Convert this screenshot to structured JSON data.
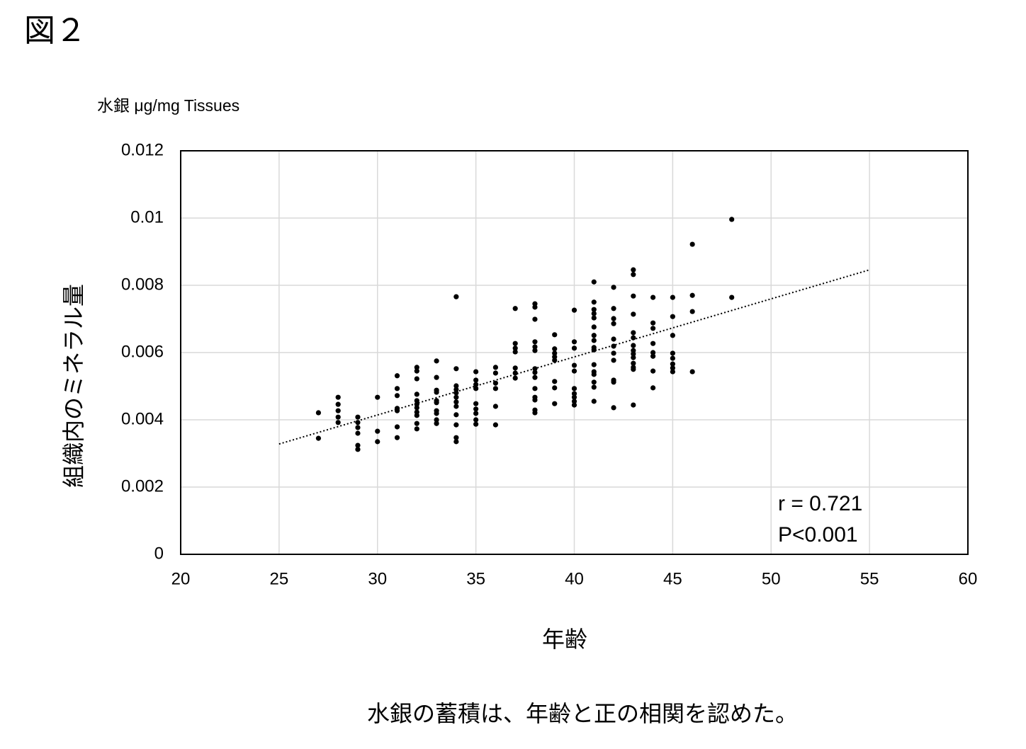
{
  "chart_data": {
    "type": "scatter",
    "figure_label": "図２",
    "y_unit_label": "水銀 μg/mg Tissues",
    "ylabel": "組織内のミネラル量",
    "xlabel": "年齢",
    "caption": "水銀の蓄積は、年齢と正の相関を認めた。",
    "annotations": [
      "r = 0.721",
      "P<0.001"
    ],
    "color": "#000000",
    "grid": true,
    "xlim": [
      20,
      60
    ],
    "xticks": [
      20,
      25,
      30,
      35,
      40,
      45,
      50,
      55,
      60
    ],
    "ylim": [
      0,
      0.012
    ],
    "yticks": [
      0,
      0.002,
      0.004,
      0.006,
      0.008,
      0.01,
      0.012
    ],
    "x": [
      27,
      27,
      28,
      28,
      28,
      28,
      28,
      29,
      29,
      29,
      29,
      29,
      29,
      30,
      30,
      30,
      31,
      31,
      31,
      31,
      31,
      31,
      31,
      32,
      32,
      32,
      32,
      32,
      32,
      32,
      32,
      32,
      32,
      32,
      33,
      33,
      33,
      33,
      33,
      33,
      33,
      33,
      33,
      33,
      34,
      34,
      34,
      34,
      34,
      34,
      34,
      34,
      34,
      34,
      34,
      34,
      35,
      35,
      35,
      35,
      35,
      35,
      35,
      35,
      35,
      36,
      36,
      36,
      36,
      36,
      36,
      37,
      37,
      37,
      37,
      37,
      37,
      37,
      38,
      38,
      38,
      38,
      38,
      38,
      38,
      38,
      38,
      38,
      38,
      38,
      38,
      38,
      39,
      39,
      39,
      39,
      39,
      39,
      39,
      39,
      40,
      40,
      40,
      40,
      40,
      40,
      40,
      40,
      40,
      40,
      41,
      41,
      41,
      41,
      41,
      41,
      41,
      41,
      41,
      41,
      41,
      41,
      41,
      41,
      41,
      41,
      42,
      42,
      42,
      42,
      42,
      42,
      42,
      42,
      42,
      42,
      42,
      43,
      43,
      43,
      43,
      43,
      43,
      43,
      43,
      43,
      43,
      43,
      43,
      43,
      43,
      44,
      44,
      44,
      44,
      44,
      44,
      44,
      44,
      45,
      45,
      45,
      45,
      45,
      45,
      45,
      45,
      46,
      46,
      46,
      46,
      48,
      48
    ],
    "values": [
      0.00421,
      0.00345,
      0.00467,
      0.00446,
      0.00427,
      0.00408,
      0.00392,
      0.00408,
      0.00392,
      0.00377,
      0.0036,
      0.00324,
      0.00312,
      0.00467,
      0.00366,
      0.00335,
      0.00531,
      0.00493,
      0.00472,
      0.00434,
      0.00427,
      0.00379,
      0.00347,
      0.00556,
      0.00545,
      0.00522,
      0.00476,
      0.00457,
      0.00446,
      0.00436,
      0.00423,
      0.00413,
      0.00389,
      0.00373,
      0.00575,
      0.00526,
      0.00488,
      0.00482,
      0.00457,
      0.00451,
      0.00427,
      0.00419,
      0.004,
      0.00389,
      0.00766,
      0.00552,
      0.00501,
      0.0049,
      0.0048,
      0.00467,
      0.00453,
      0.0044,
      0.00415,
      0.00385,
      0.00347,
      0.00335,
      0.00543,
      0.00518,
      0.00505,
      0.00493,
      0.00448,
      0.00432,
      0.00419,
      0.004,
      0.00387,
      0.00556,
      0.00539,
      0.00509,
      0.00493,
      0.0044,
      0.00385,
      0.00731,
      0.00627,
      0.00613,
      0.00602,
      0.00554,
      0.00539,
      0.00524,
      0.00745,
      0.00735,
      0.00699,
      0.00632,
      0.00617,
      0.00606,
      0.00552,
      0.00541,
      0.00526,
      0.00493,
      0.00467,
      0.00459,
      0.00429,
      0.00421,
      0.00653,
      0.00611,
      0.00598,
      0.00587,
      0.00577,
      0.00514,
      0.00495,
      0.00448,
      0.00726,
      0.00632,
      0.00613,
      0.00562,
      0.00545,
      0.00493,
      0.00478,
      0.00467,
      0.00455,
      0.00444,
      0.0081,
      0.0075,
      0.00728,
      0.00716,
      0.00703,
      0.00676,
      0.00651,
      0.00636,
      0.00615,
      0.00608,
      0.00564,
      0.00543,
      0.00535,
      0.00512,
      0.00497,
      0.00455,
      0.00794,
      0.00731,
      0.00701,
      0.00686,
      0.0064,
      0.00619,
      0.00598,
      0.00577,
      0.00518,
      0.00512,
      0.00436,
      0.00846,
      0.00832,
      0.00768,
      0.00714,
      0.00659,
      0.00644,
      0.00621,
      0.00606,
      0.00596,
      0.00585,
      0.00568,
      0.00556,
      0.0055,
      0.00444,
      0.00764,
      0.00688,
      0.00672,
      0.00627,
      0.006,
      0.00589,
      0.00545,
      0.00495,
      0.00764,
      0.00707,
      0.00651,
      0.00598,
      0.00583,
      0.00566,
      0.00554,
      0.00543,
      0.00922,
      0.0077,
      0.00722,
      0.00543,
      0.00996,
      0.00764
    ],
    "trendline": {
      "x": [
        25,
        55
      ],
      "values": [
        0.00328,
        0.00846
      ]
    }
  }
}
